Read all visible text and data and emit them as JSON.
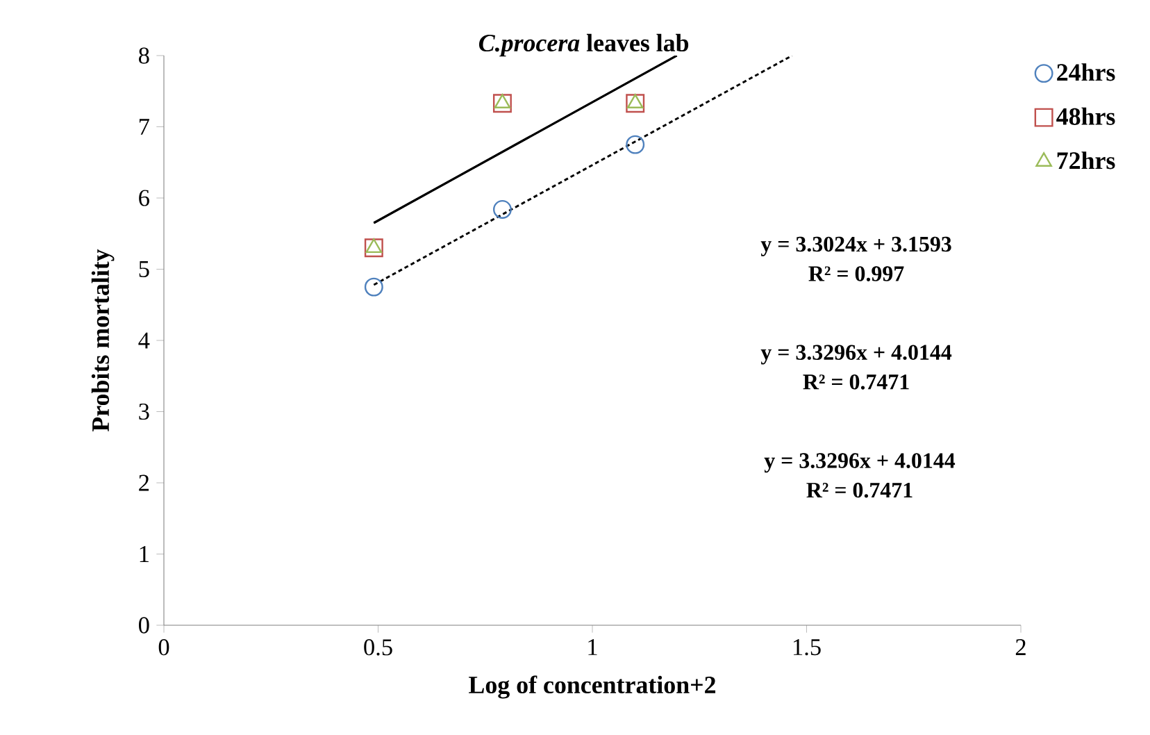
{
  "chart_data": {
    "type": "scatter",
    "title": "*C.procera* leaves lab",
    "xlabel": "Log of concentration+2",
    "ylabel": "Probits  mortality",
    "xlim": [
      0,
      2
    ],
    "xticks": [
      0,
      0.5,
      1,
      1.5,
      2
    ],
    "ylim": [
      0,
      8
    ],
    "yticks": [
      0,
      1,
      2,
      3,
      4,
      5,
      6,
      7,
      8
    ],
    "grid": false,
    "legend": "top right",
    "series": [
      {
        "name": "24hrs",
        "marker": "circle",
        "color": "#4f81bd",
        "x": [
          0.49,
          0.79,
          1.1
        ],
        "values": [
          4.75,
          5.84,
          6.75
        ]
      },
      {
        "name": "48hrs",
        "marker": "square",
        "color": "#c0504d",
        "x": [
          0.49,
          0.79,
          1.1
        ],
        "values": [
          5.3,
          7.33,
          7.33
        ]
      },
      {
        "name": "72hrs",
        "marker": "triangle",
        "color": "#9bbb59",
        "x": [
          0.49,
          0.79,
          1.1
        ],
        "values": [
          5.3,
          7.33,
          7.33
        ]
      },
      {
        "type": "line",
        "marker": "none",
        "line_style": "dashed",
        "color": "#000000",
        "x": [
          0.49,
          1.466
        ],
        "values": [
          4.78,
          8
        ]
      },
      {
        "type": "line",
        "marker": "none",
        "line_style": "solid",
        "color": "#000000",
        "x": [
          0.49,
          1.197
        ],
        "values": [
          5.65,
          8
        ]
      },
      {
        "type": "line",
        "marker": "none",
        "line_style": "solid",
        "color": "#000000",
        "x": [
          0.49,
          1.197
        ],
        "values": [
          5.65,
          8
        ]
      }
    ],
    "annotations": [
      "y = 3.3024x + 3.1593",
      "R² = 0.997",
      "y = 3.3296x + 4.0144",
      "R² = 0.7471",
      "y = 3.3296x + 4.0144",
      "R² = 0.7471"
    ]
  }
}
